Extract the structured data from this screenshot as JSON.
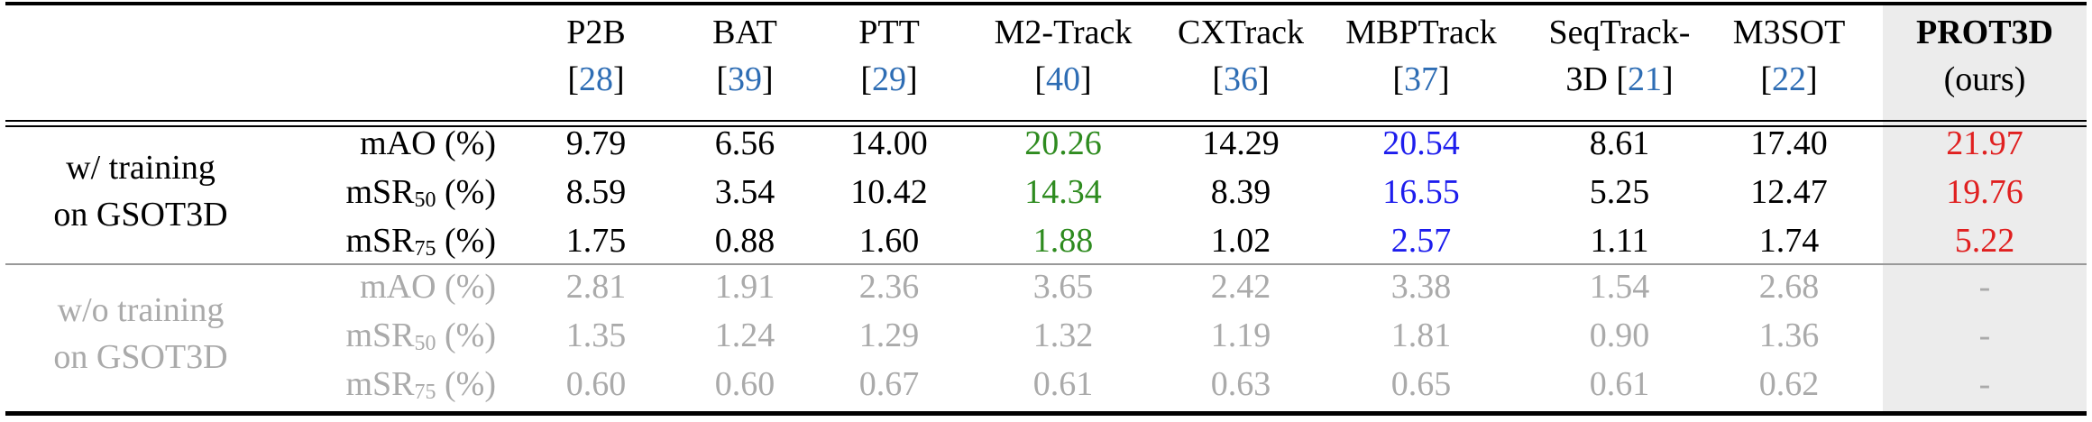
{
  "columns": [
    {
      "name": "P2B",
      "ref": "28"
    },
    {
      "name": "BAT",
      "ref": "39"
    },
    {
      "name": "PTT",
      "ref": "29"
    },
    {
      "name": "M2-Track",
      "ref": "40"
    },
    {
      "name": "CXTrack",
      "ref": "36"
    },
    {
      "name": "MBPTrack",
      "ref": "37"
    },
    {
      "name": "SeqTrack-",
      "name2": "3D",
      "ref": "21"
    },
    {
      "name": "M3SOT",
      "ref": "22"
    },
    {
      "name": "PROT3D",
      "name2": "(ours)"
    }
  ],
  "groups": [
    {
      "label_line1": "w/ training",
      "label_line2": "on GSOT3D",
      "rows": [
        {
          "metric": "mAO (%)",
          "values": [
            "9.79",
            "6.56",
            "14.00",
            "20.26",
            "14.29",
            "20.54",
            "8.61",
            "17.40",
            "21.97"
          ]
        },
        {
          "metric_base": "mSR",
          "metric_sub": "50",
          "metric_suffix": " (%)",
          "values": [
            "8.59",
            "3.54",
            "10.42",
            "14.34",
            "8.39",
            "16.55",
            "5.25",
            "12.47",
            "19.76"
          ]
        },
        {
          "metric_base": "mSR",
          "metric_sub": "75",
          "metric_suffix": " (%)",
          "values": [
            "1.75",
            "0.88",
            "1.60",
            "1.88",
            "1.02",
            "2.57",
            "1.11",
            "1.74",
            "5.22"
          ]
        }
      ]
    },
    {
      "label_line1": "w/o training",
      "label_line2": "on GSOT3D",
      "rows": [
        {
          "metric": "mAO (%)",
          "values": [
            "2.81",
            "1.91",
            "2.36",
            "3.65",
            "2.42",
            "3.38",
            "1.54",
            "2.68",
            "-"
          ]
        },
        {
          "metric_base": "mSR",
          "metric_sub": "50",
          "metric_suffix": " (%)",
          "values": [
            "1.35",
            "1.24",
            "1.29",
            "1.32",
            "1.19",
            "1.81",
            "0.90",
            "1.36",
            "-"
          ]
        },
        {
          "metric_base": "mSR",
          "metric_sub": "75",
          "metric_suffix": " (%)",
          "values": [
            "0.60",
            "0.60",
            "0.67",
            "0.61",
            "0.63",
            "0.65",
            "0.61",
            "0.62",
            "-"
          ]
        }
      ]
    }
  ],
  "colors": {
    "third_best": "#2e8b1f",
    "second_best": "#1d1ded",
    "best": "#e02020",
    "reference": "#2e6db4",
    "muted": "#aaaaaa"
  }
}
